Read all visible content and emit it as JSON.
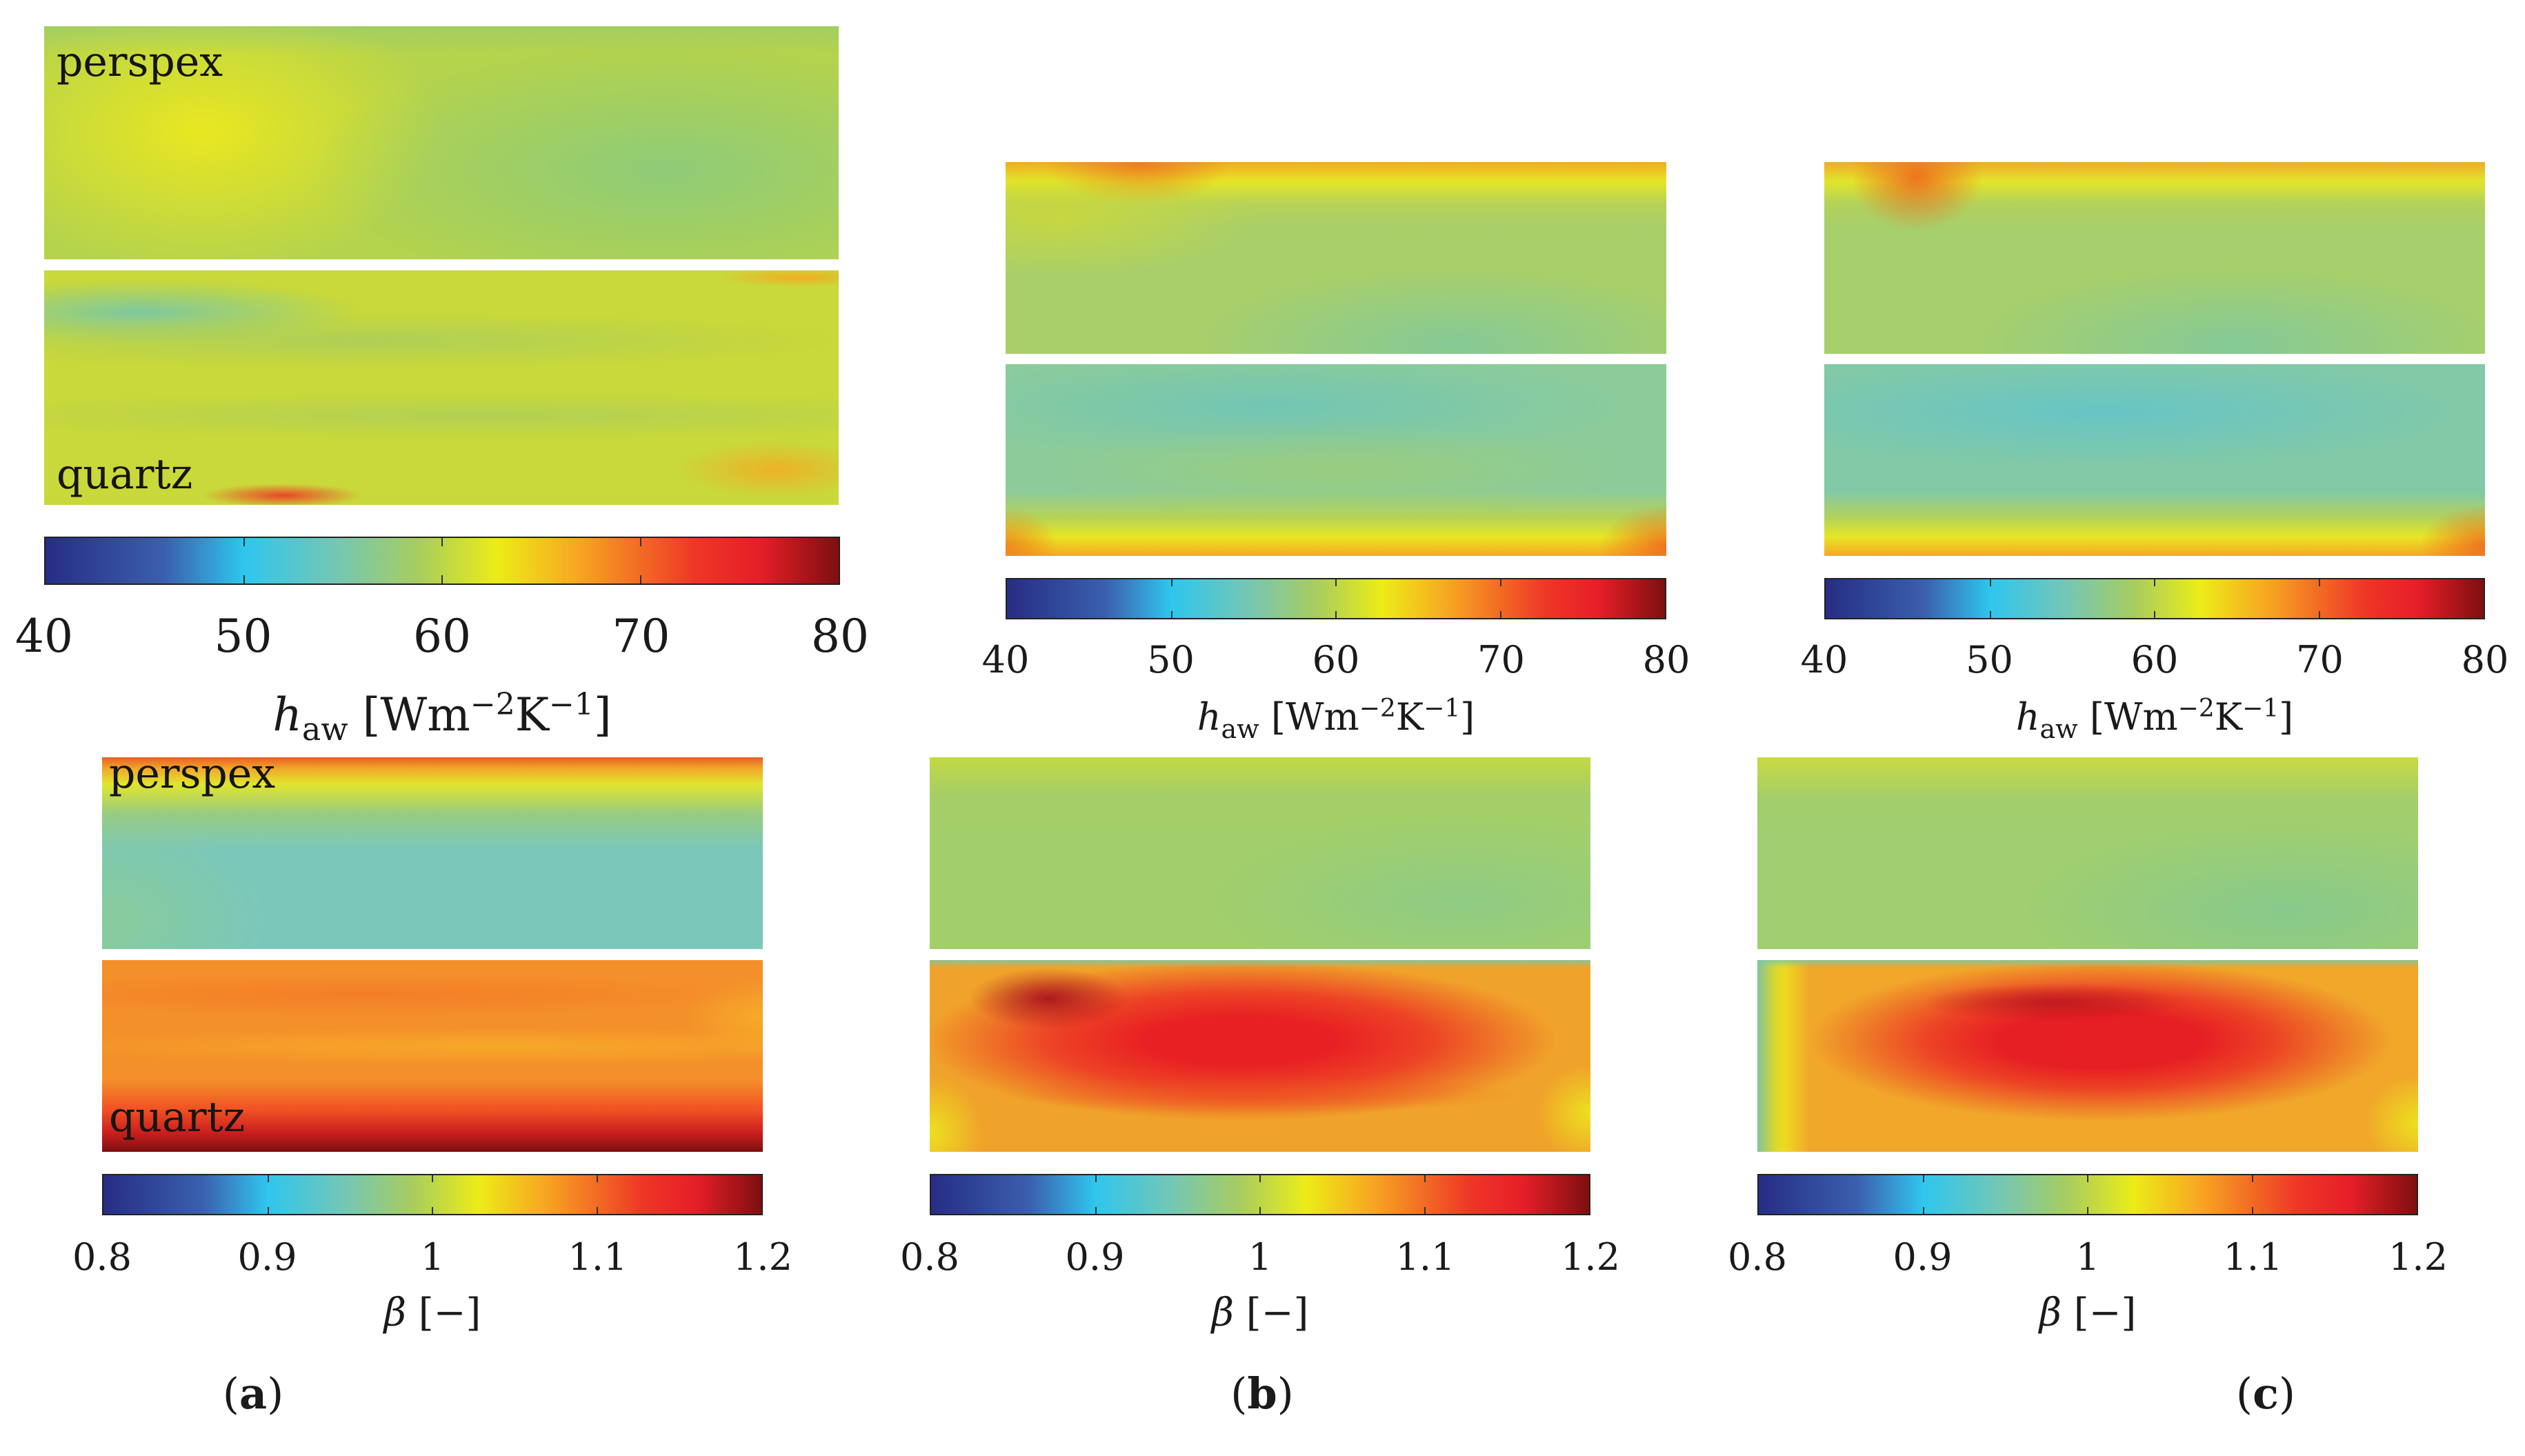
{
  "chart_data": [
    {
      "type": "heatmap",
      "panel": "a",
      "quantity": "h_aw",
      "colorbar": {
        "min": 40,
        "max": 80,
        "ticks": [
          "40",
          "50",
          "60",
          "70",
          "80"
        ],
        "label_sym": "h",
        "label_sub": "aw",
        "label_units": "[Wm",
        "exp1": "−2",
        "mid": "K",
        "exp2": "−1",
        "close": "]"
      },
      "regions": [
        {
          "name": "perspex",
          "label": "perspex",
          "typical_value": 63,
          "range": [
            59,
            66
          ]
        },
        {
          "name": "quartz",
          "label": "quartz",
          "typical_value": 63,
          "range": [
            58,
            69
          ]
        }
      ]
    },
    {
      "type": "heatmap",
      "panel": "b",
      "quantity": "h_aw",
      "colorbar": {
        "min": 40,
        "max": 80,
        "ticks": [
          "40",
          "50",
          "60",
          "70",
          "80"
        ],
        "label_sym": "h",
        "label_sub": "aw",
        "label_units": "[Wm",
        "exp1": "−2",
        "mid": "K",
        "exp2": "−1",
        "close": "]"
      },
      "regions": [
        {
          "name": "perspex",
          "typical_value": 60,
          "range": [
            57,
            68
          ]
        },
        {
          "name": "quartz",
          "typical_value": 58,
          "range": [
            56,
            69
          ]
        }
      ]
    },
    {
      "type": "heatmap",
      "panel": "c",
      "quantity": "h_aw",
      "colorbar": {
        "min": 40,
        "max": 80,
        "ticks": [
          "40",
          "50",
          "60",
          "70",
          "80"
        ],
        "label_sym": "h",
        "label_sub": "aw",
        "label_units": "[Wm",
        "exp1": "−2",
        "mid": "K",
        "exp2": "−1",
        "close": "]"
      },
      "regions": [
        {
          "name": "perspex",
          "typical_value": 60,
          "range": [
            57,
            68
          ]
        },
        {
          "name": "quartz",
          "typical_value": 57,
          "range": [
            55,
            69
          ]
        }
      ]
    },
    {
      "type": "heatmap",
      "panel": "a",
      "quantity": "beta",
      "colorbar": {
        "min": 0.8,
        "max": 1.2,
        "ticks": [
          "0.8",
          "0.9",
          "1",
          "1.1",
          "1.2"
        ],
        "label_sym": "β",
        "label_rest": "[−]"
      },
      "regions": [
        {
          "name": "perspex",
          "label": "perspex",
          "typical_value": 0.97,
          "range": [
            0.96,
            1.08
          ]
        },
        {
          "name": "quartz",
          "label": "quartz",
          "typical_value": 1.08,
          "range": [
            1.06,
            1.2
          ]
        }
      ]
    },
    {
      "type": "heatmap",
      "panel": "b",
      "quantity": "beta",
      "colorbar": {
        "min": 0.8,
        "max": 1.2,
        "ticks": [
          "0.8",
          "0.9",
          "1",
          "1.1",
          "1.2"
        ],
        "label_sym": "β",
        "label_rest": "[−]"
      },
      "regions": [
        {
          "name": "perspex",
          "typical_value": 1.0,
          "range": [
            0.98,
            1.03
          ]
        },
        {
          "name": "quartz",
          "typical_value": 1.13,
          "range": [
            1.03,
            1.17
          ]
        }
      ]
    },
    {
      "type": "heatmap",
      "panel": "c",
      "quantity": "beta",
      "colorbar": {
        "min": 0.8,
        "max": 1.2,
        "ticks": [
          "0.8",
          "0.9",
          "1",
          "1.1",
          "1.2"
        ],
        "label_sym": "β",
        "label_rest": "[−]"
      },
      "regions": [
        {
          "name": "perspex",
          "typical_value": 0.99,
          "range": [
            0.98,
            1.02
          ]
        },
        {
          "name": "quartz",
          "typical_value": 1.14,
          "range": [
            0.98,
            1.17
          ]
        }
      ]
    }
  ],
  "panel_labels": [
    {
      "open": "(",
      "letter": "a",
      "close": ")"
    },
    {
      "open": "(",
      "letter": "b",
      "close": ")"
    },
    {
      "open": "(",
      "letter": "c",
      "close": ")"
    }
  ]
}
